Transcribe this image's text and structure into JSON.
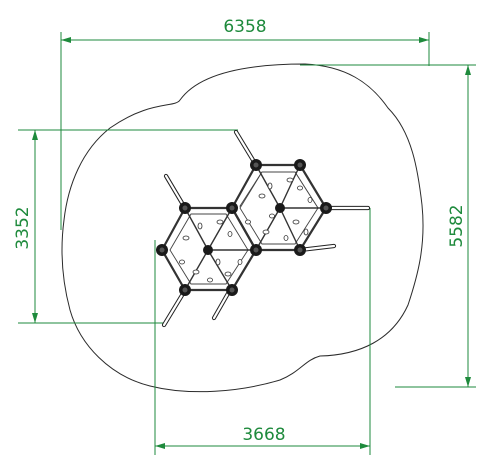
{
  "dimensions": {
    "overall_width": "6358",
    "overall_depth": "5582",
    "structure_height": "3352",
    "structure_width": "3668"
  },
  "colors": {
    "dimension": "#1e8a3c",
    "outline": "#2b2b2b"
  }
}
